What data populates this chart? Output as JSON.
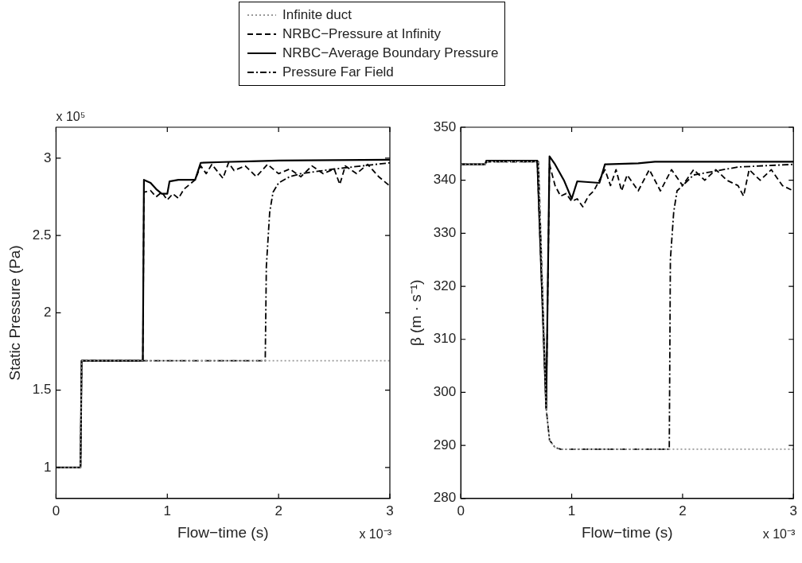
{
  "chart_data": [
    {
      "type": "line",
      "xlabel": "Flow−time (s)",
      "ylabel": "Static Pressure (Pa)",
      "xlim": [
        0,
        3
      ],
      "xticks": [
        0,
        1,
        2,
        3
      ],
      "ylim": [
        0.8,
        3.2
      ],
      "yticks": [
        1,
        1.5,
        2,
        2.5,
        3
      ],
      "grid": false,
      "legend": "top",
      "marker": "none",
      "annotations": [
        "x 10⁵",
        "x 10⁻³"
      ],
      "series": [
        {
          "name": "Infinite duct",
          "color": "#999999",
          "line_style": "dotted",
          "x": [
            0,
            0.22,
            0.23,
            3
          ],
          "values": [
            1,
            1,
            1.69,
            1.69
          ]
        },
        {
          "name": "NRBC−Pressure at Infinity",
          "color": "#000000",
          "line_style": "dashed",
          "x": [
            0,
            0.22,
            0.23,
            0.78,
            0.79,
            0.85,
            0.9,
            0.95,
            1.0,
            1.05,
            1.1,
            1.15,
            1.2,
            1.25,
            1.3,
            1.35,
            1.4,
            1.5,
            1.55,
            1.6,
            1.7,
            1.8,
            1.9,
            2.0,
            2.1,
            2.2,
            2.3,
            2.4,
            2.5,
            2.55,
            2.6,
            2.7,
            2.8,
            2.9,
            3.0
          ],
          "values": [
            1,
            1,
            1.69,
            1.69,
            2.78,
            2.79,
            2.75,
            2.78,
            2.73,
            2.77,
            2.74,
            2.8,
            2.83,
            2.86,
            2.95,
            2.9,
            2.96,
            2.87,
            2.97,
            2.92,
            2.95,
            2.88,
            2.96,
            2.9,
            2.93,
            2.88,
            2.95,
            2.9,
            2.93,
            2.83,
            2.95,
            2.9,
            2.96,
            2.88,
            2.82
          ]
        },
        {
          "name": "NRBC−Average Boundary Pressure",
          "color": "#000000",
          "line_style": "solid",
          "x": [
            0,
            0.22,
            0.23,
            0.78,
            0.79,
            0.85,
            0.9,
            0.95,
            1.0,
            1.02,
            1.1,
            1.25,
            1.3,
            1.5,
            1.75,
            2.0,
            3.0
          ],
          "values": [
            1,
            1,
            1.69,
            1.69,
            2.86,
            2.84,
            2.8,
            2.77,
            2.77,
            2.85,
            2.86,
            2.86,
            2.97,
            2.975,
            2.98,
            2.985,
            2.99
          ]
        },
        {
          "name": "Pressure Far Field",
          "color": "#000000",
          "line_style": "dashdot",
          "x": [
            0,
            0.22,
            0.23,
            1.88,
            1.89,
            1.92,
            1.95,
            2.0,
            2.1,
            2.2,
            2.5,
            3.0
          ],
          "values": [
            1,
            1,
            1.69,
            1.69,
            2.3,
            2.65,
            2.78,
            2.84,
            2.88,
            2.9,
            2.93,
            2.97
          ]
        }
      ]
    },
    {
      "type": "line",
      "xlabel": "Flow−time (s)",
      "ylabel": "β (m · s⁻¹)",
      "xlim": [
        0,
        3
      ],
      "xticks": [
        0,
        1,
        2,
        3
      ],
      "ylim": [
        280,
        350
      ],
      "yticks": [
        280,
        290,
        300,
        310,
        320,
        330,
        340,
        350
      ],
      "grid": false,
      "legend": false,
      "marker": "none",
      "annotations": [
        "x 10⁻³"
      ],
      "series": [
        {
          "color": "#999999",
          "line_style": "dotted",
          "x": [
            0,
            0.22,
            0.23,
            0.7,
            0.77,
            0.8,
            0.85,
            0.9,
            3.0
          ],
          "values": [
            343,
            343,
            343.5,
            343.5,
            297,
            291,
            289.6,
            289.3,
            289.3
          ]
        },
        {
          "color": "#000000",
          "line_style": "dashed",
          "x": [
            0,
            0.22,
            0.23,
            0.69,
            0.77,
            0.8,
            0.85,
            0.9,
            0.95,
            1.0,
            1.05,
            1.1,
            1.15,
            1.2,
            1.25,
            1.3,
            1.35,
            1.4,
            1.45,
            1.5,
            1.6,
            1.7,
            1.8,
            1.9,
            2.0,
            2.1,
            2.2,
            2.3,
            2.4,
            2.5,
            2.55,
            2.6,
            2.7,
            2.8,
            2.9,
            3.0
          ],
          "values": [
            343,
            343,
            343.5,
            343.5,
            297,
            343,
            339,
            337,
            337.5,
            336,
            336.5,
            335,
            337,
            338,
            340,
            342,
            339,
            342,
            338,
            341,
            338,
            342,
            338,
            342,
            339,
            342,
            340,
            342,
            340,
            339,
            337,
            342,
            340,
            342,
            339,
            338
          ]
        },
        {
          "color": "#000000",
          "line_style": "solid",
          "x": [
            0,
            0.22,
            0.23,
            0.69,
            0.77,
            0.8,
            0.85,
            0.93,
            1.0,
            1.05,
            1.25,
            1.3,
            1.6,
            1.75,
            3.0
          ],
          "values": [
            343,
            343,
            343.7,
            343.7,
            297,
            344.5,
            343,
            340,
            336.5,
            339.8,
            339.5,
            343,
            343.2,
            343.5,
            343.5
          ]
        },
        {
          "color": "#000000",
          "line_style": "dashdot",
          "x": [
            0,
            0.22,
            0.23,
            0.7,
            0.77,
            0.8,
            0.85,
            0.9,
            1.88,
            1.89,
            1.92,
            1.95,
            2.1,
            2.5,
            3.0
          ],
          "values": [
            343,
            343,
            343.5,
            343.5,
            297,
            291,
            289.6,
            289.3,
            289.3,
            325,
            334,
            338,
            341,
            342.5,
            343
          ]
        }
      ]
    }
  ]
}
